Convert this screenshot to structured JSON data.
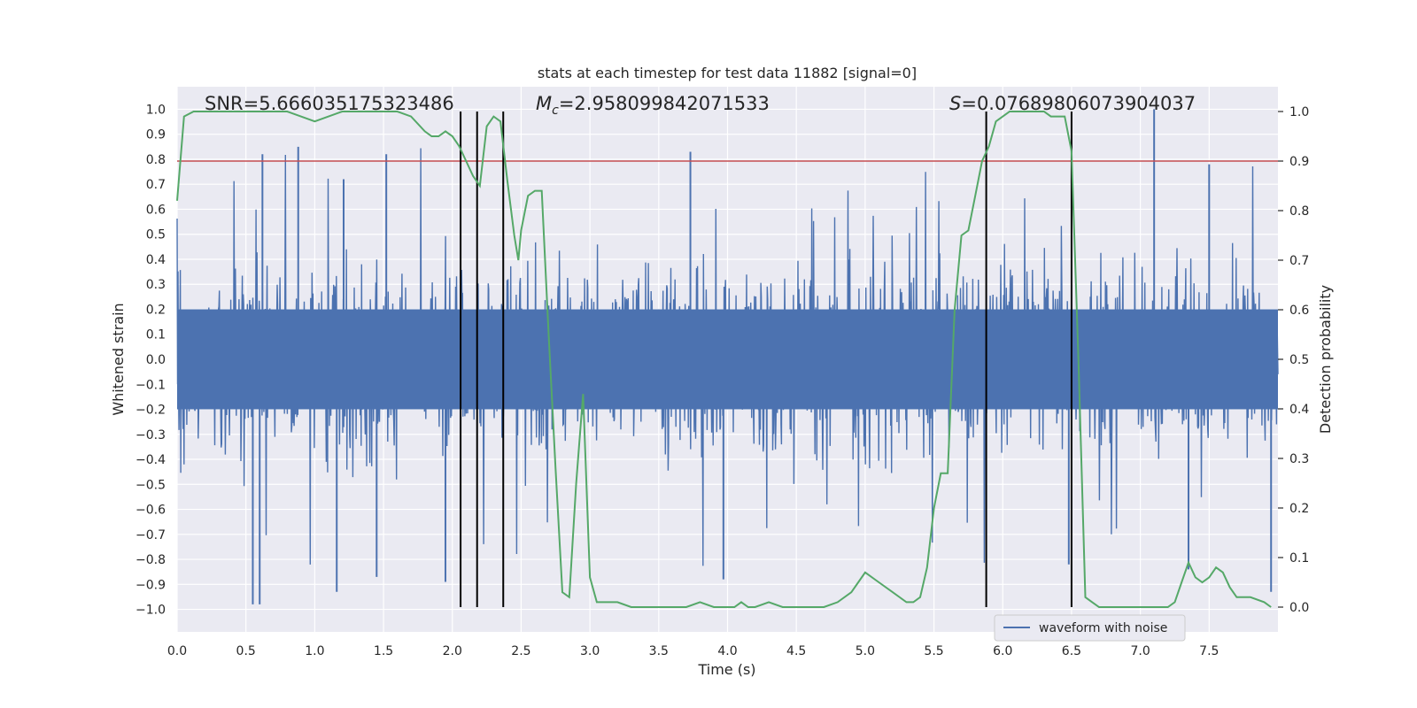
{
  "chart_data": {
    "type": "line",
    "title": "stats at each timestep for test data 11882 [signal=0]",
    "xlabel": "Time (s)",
    "ylabel_left": "Whitened strain",
    "ylabel_right": "Detection probability",
    "xlim": [
      0.0,
      8.0
    ],
    "ylim_left": [
      -1.09,
      1.09
    ],
    "ylim_right": [
      -0.05,
      1.05
    ],
    "x_ticks": [
      0.0,
      0.5,
      1.0,
      1.5,
      2.0,
      2.5,
      3.0,
      3.5,
      4.0,
      4.5,
      5.0,
      5.5,
      6.0,
      6.5,
      7.0,
      7.5
    ],
    "x_tick_labels": [
      "0.0",
      "0.5",
      "1.0",
      "1.5",
      "2.0",
      "2.5",
      "3.0",
      "3.5",
      "4.0",
      "4.5",
      "5.0",
      "5.5",
      "6.0",
      "6.5",
      "7.0",
      "7.5"
    ],
    "y_left_ticks": [
      1.0,
      0.9,
      0.8,
      0.7,
      0.6,
      0.5,
      0.4,
      0.3,
      0.2,
      0.1,
      0.0,
      -0.1,
      -0.2,
      -0.3,
      -0.4,
      -0.5,
      -0.6,
      -0.7,
      -0.8,
      -0.9,
      -1.0
    ],
    "y_left_tick_labels": [
      "1.0",
      "0.9",
      "0.8",
      "0.7",
      "0.6",
      "0.5",
      "0.4",
      "0.3",
      "0.2",
      "0.1",
      "0.0",
      "−0.1",
      "−0.2",
      "−0.3",
      "−0.4",
      "−0.5",
      "−0.6",
      "−0.7",
      "−0.8",
      "−0.9",
      "−1.0"
    ],
    "y_right_ticks": [
      1.0,
      0.9,
      0.8,
      0.7,
      0.6,
      0.5,
      0.4,
      0.3,
      0.2,
      0.1,
      0.0
    ],
    "y_right_tick_labels": [
      "1.0",
      "0.9",
      "0.8",
      "0.7",
      "0.6",
      "0.5",
      "0.4",
      "0.3",
      "0.2",
      "0.1",
      "0.0"
    ],
    "threshold": {
      "value": 0.9,
      "axis": "right",
      "color": "#c44e52"
    },
    "vertical_lines": [
      2.06,
      2.18,
      2.37,
      5.88,
      6.5
    ],
    "annotations": {
      "snr": "SNR=5.666035175323486",
      "mc_symbol": "M",
      "mc_sub": "c",
      "mc_value": "=2.958099842071533",
      "s_symbol": "S",
      "s_value": "=0.07689806073904037"
    },
    "series": [
      {
        "name": "waveform with noise",
        "axis": "left",
        "color": "#4c72b0",
        "kind": "noise",
        "typical_amplitude": 0.4,
        "max_amplitude": 1.0,
        "spikes": [
          [
            0.55,
            -0.98
          ],
          [
            0.6,
            -0.98
          ],
          [
            0.62,
            0.82
          ],
          [
            0.88,
            0.85
          ],
          [
            1.16,
            -0.93
          ],
          [
            1.45,
            -0.87
          ],
          [
            1.52,
            0.82
          ],
          [
            1.95,
            -0.89
          ],
          [
            7.1,
            1.0
          ],
          [
            7.35,
            -0.84
          ],
          [
            7.5,
            0.78
          ],
          [
            7.95,
            -0.93
          ],
          [
            3.73,
            0.83
          ],
          [
            3.97,
            -0.88
          ],
          [
            6.48,
            -0.82
          ],
          [
            1.21,
            0.72
          ]
        ]
      },
      {
        "name": "detection probability",
        "axis": "right",
        "color": "#55a868",
        "x": [
          0.0,
          0.05,
          0.12,
          0.2,
          0.4,
          0.6,
          0.7,
          0.8,
          0.9,
          1.0,
          1.2,
          1.5,
          1.6,
          1.7,
          1.8,
          1.85,
          1.9,
          1.95,
          2.0,
          2.05,
          2.1,
          2.15,
          2.2,
          2.25,
          2.3,
          2.35,
          2.4,
          2.45,
          2.48,
          2.5,
          2.55,
          2.6,
          2.65,
          2.7,
          2.75,
          2.8,
          2.85,
          2.9,
          2.95,
          3.0,
          3.05,
          3.1,
          3.2,
          3.3,
          3.5,
          3.7,
          3.8,
          3.9,
          4.0,
          4.05,
          4.1,
          4.15,
          4.2,
          4.3,
          4.4,
          4.6,
          4.7,
          4.8,
          4.9,
          4.95,
          5.0,
          5.1,
          5.2,
          5.3,
          5.35,
          5.4,
          5.45,
          5.5,
          5.55,
          5.6,
          5.65,
          5.7,
          5.75,
          5.8,
          5.85,
          5.9,
          5.95,
          6.0,
          6.05,
          6.1,
          6.2,
          6.3,
          6.35,
          6.45,
          6.5,
          6.55,
          6.6,
          6.65,
          6.7,
          6.8,
          7.0,
          7.1,
          7.2,
          7.25,
          7.3,
          7.35,
          7.4,
          7.45,
          7.5,
          7.55,
          7.6,
          7.65,
          7.7,
          7.8,
          7.9,
          7.95
        ],
        "values": [
          0.82,
          0.99,
          1.0,
          1.0,
          1.0,
          1.0,
          1.0,
          1.0,
          0.99,
          0.98,
          1.0,
          1.0,
          1.0,
          0.99,
          0.96,
          0.95,
          0.95,
          0.96,
          0.95,
          0.93,
          0.9,
          0.87,
          0.85,
          0.97,
          0.99,
          0.98,
          0.86,
          0.75,
          0.7,
          0.76,
          0.83,
          0.84,
          0.84,
          0.55,
          0.28,
          0.03,
          0.02,
          0.25,
          0.43,
          0.06,
          0.01,
          0.01,
          0.01,
          0.0,
          0.0,
          0.0,
          0.01,
          0.0,
          0.0,
          0.0,
          0.01,
          0.0,
          0.0,
          0.01,
          0.0,
          0.0,
          0.0,
          0.01,
          0.03,
          0.05,
          0.07,
          0.05,
          0.03,
          0.01,
          0.01,
          0.02,
          0.08,
          0.2,
          0.27,
          0.27,
          0.6,
          0.75,
          0.76,
          0.83,
          0.9,
          0.93,
          0.98,
          0.99,
          1.0,
          1.0,
          1.0,
          1.0,
          0.99,
          0.99,
          0.92,
          0.5,
          0.02,
          0.01,
          0.0,
          0.0,
          0.0,
          0.0,
          0.0,
          0.01,
          0.05,
          0.09,
          0.06,
          0.05,
          0.06,
          0.08,
          0.07,
          0.04,
          0.02,
          0.02,
          0.01,
          0.0
        ]
      }
    ],
    "legend": {
      "entries": [
        "waveform with noise"
      ],
      "position": "lower-right"
    },
    "colors": {
      "plot_bg": "#eaeaf2",
      "grid": "#ffffff",
      "vline": "#000000",
      "text": "#262626"
    }
  }
}
